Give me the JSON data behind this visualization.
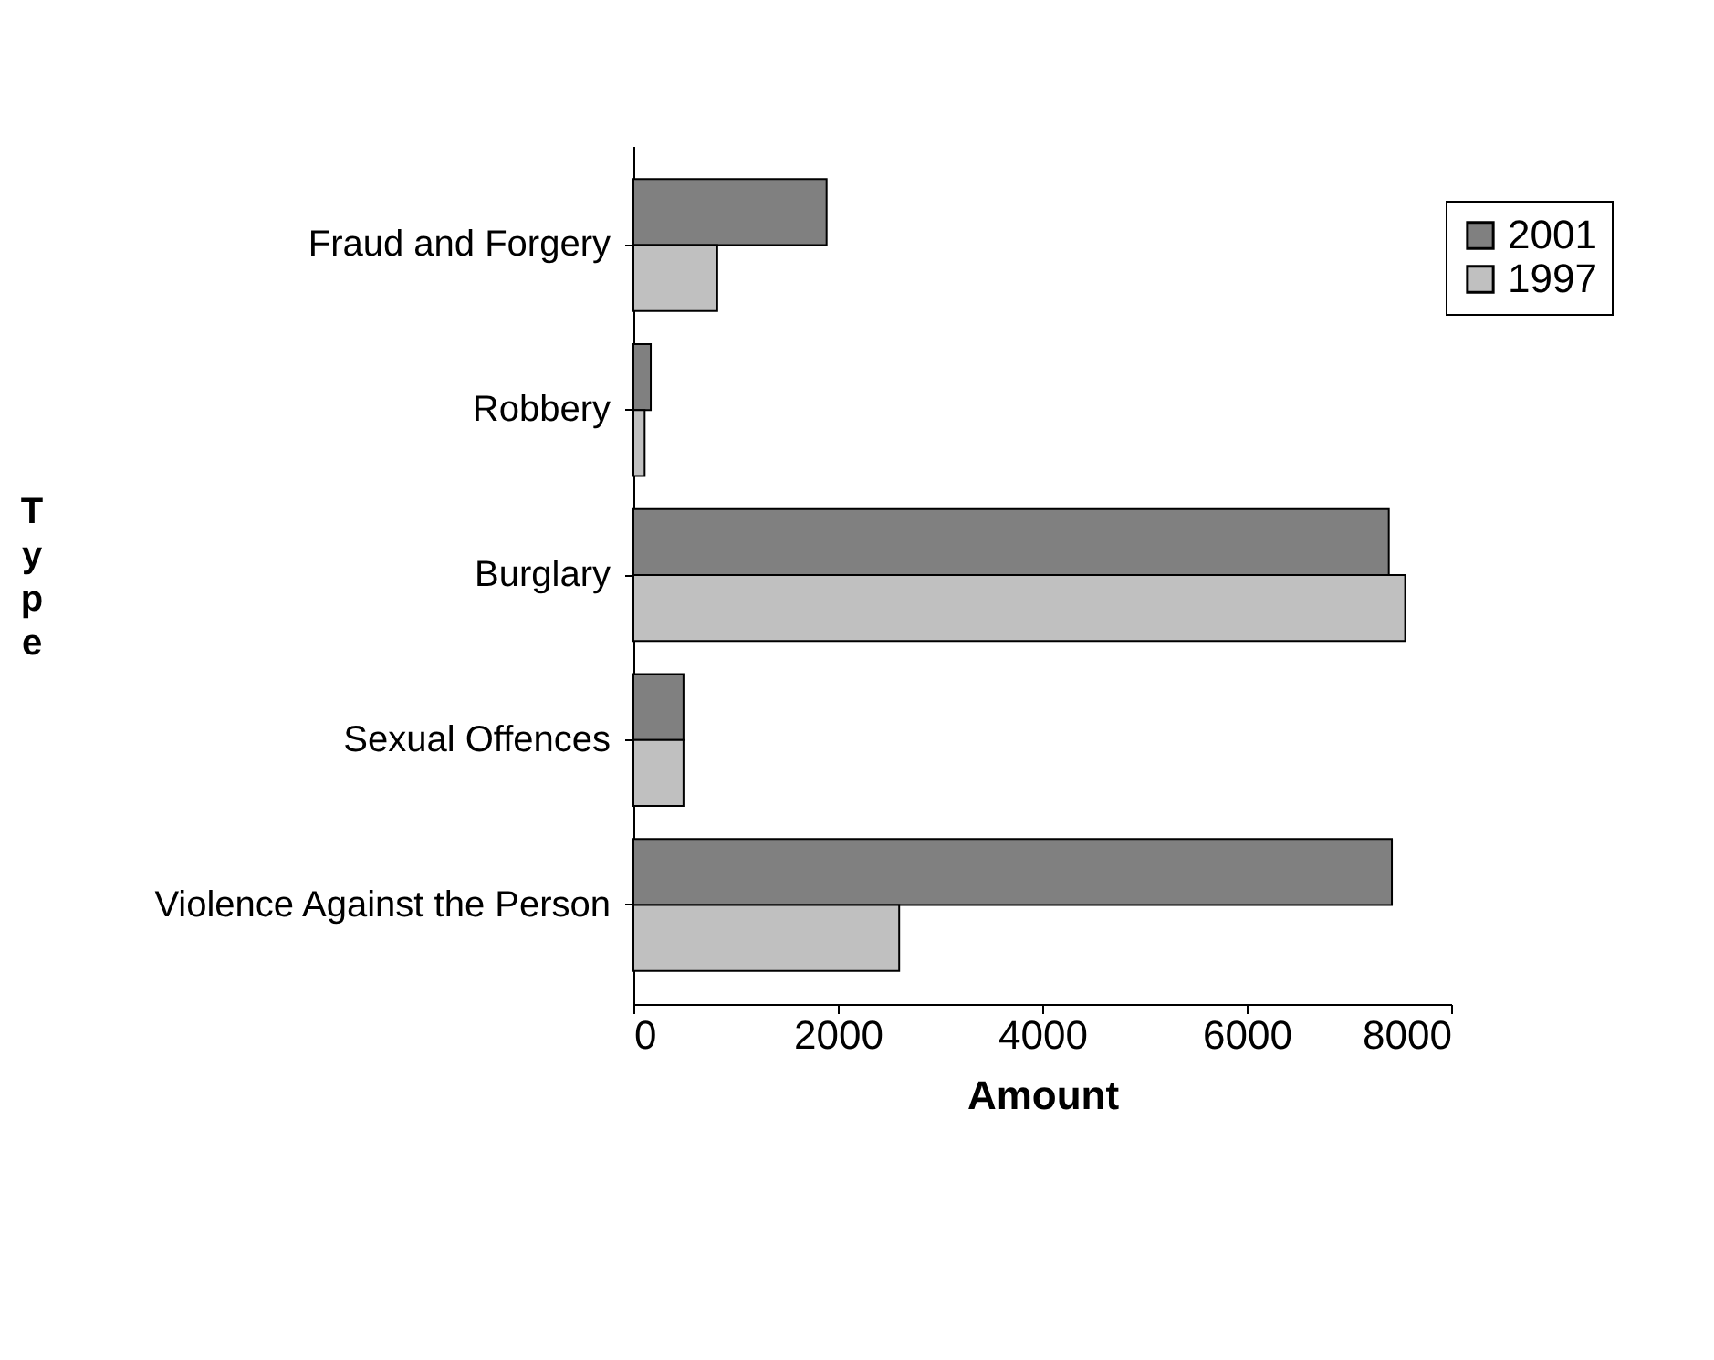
{
  "chart_data": {
    "type": "bar",
    "orientation": "horizontal",
    "xlabel": "Amount",
    "ylabel": "Type",
    "categories": [
      "Fraud and Forgery",
      "Robbery",
      "Burglary",
      "Sexual Offences",
      "Violence Against the Person"
    ],
    "series": [
      {
        "name": "2001",
        "color": "#808080",
        "values": [
          1890,
          170,
          7390,
          490,
          7420
        ]
      },
      {
        "name": "1997",
        "color": "#c0c0c0",
        "values": [
          820,
          110,
          7550,
          490,
          2600
        ]
      }
    ],
    "xlim": [
      0,
      8000
    ],
    "xticks": [
      0,
      2000,
      4000,
      6000,
      8000
    ],
    "grid": false,
    "legend": "top right"
  }
}
